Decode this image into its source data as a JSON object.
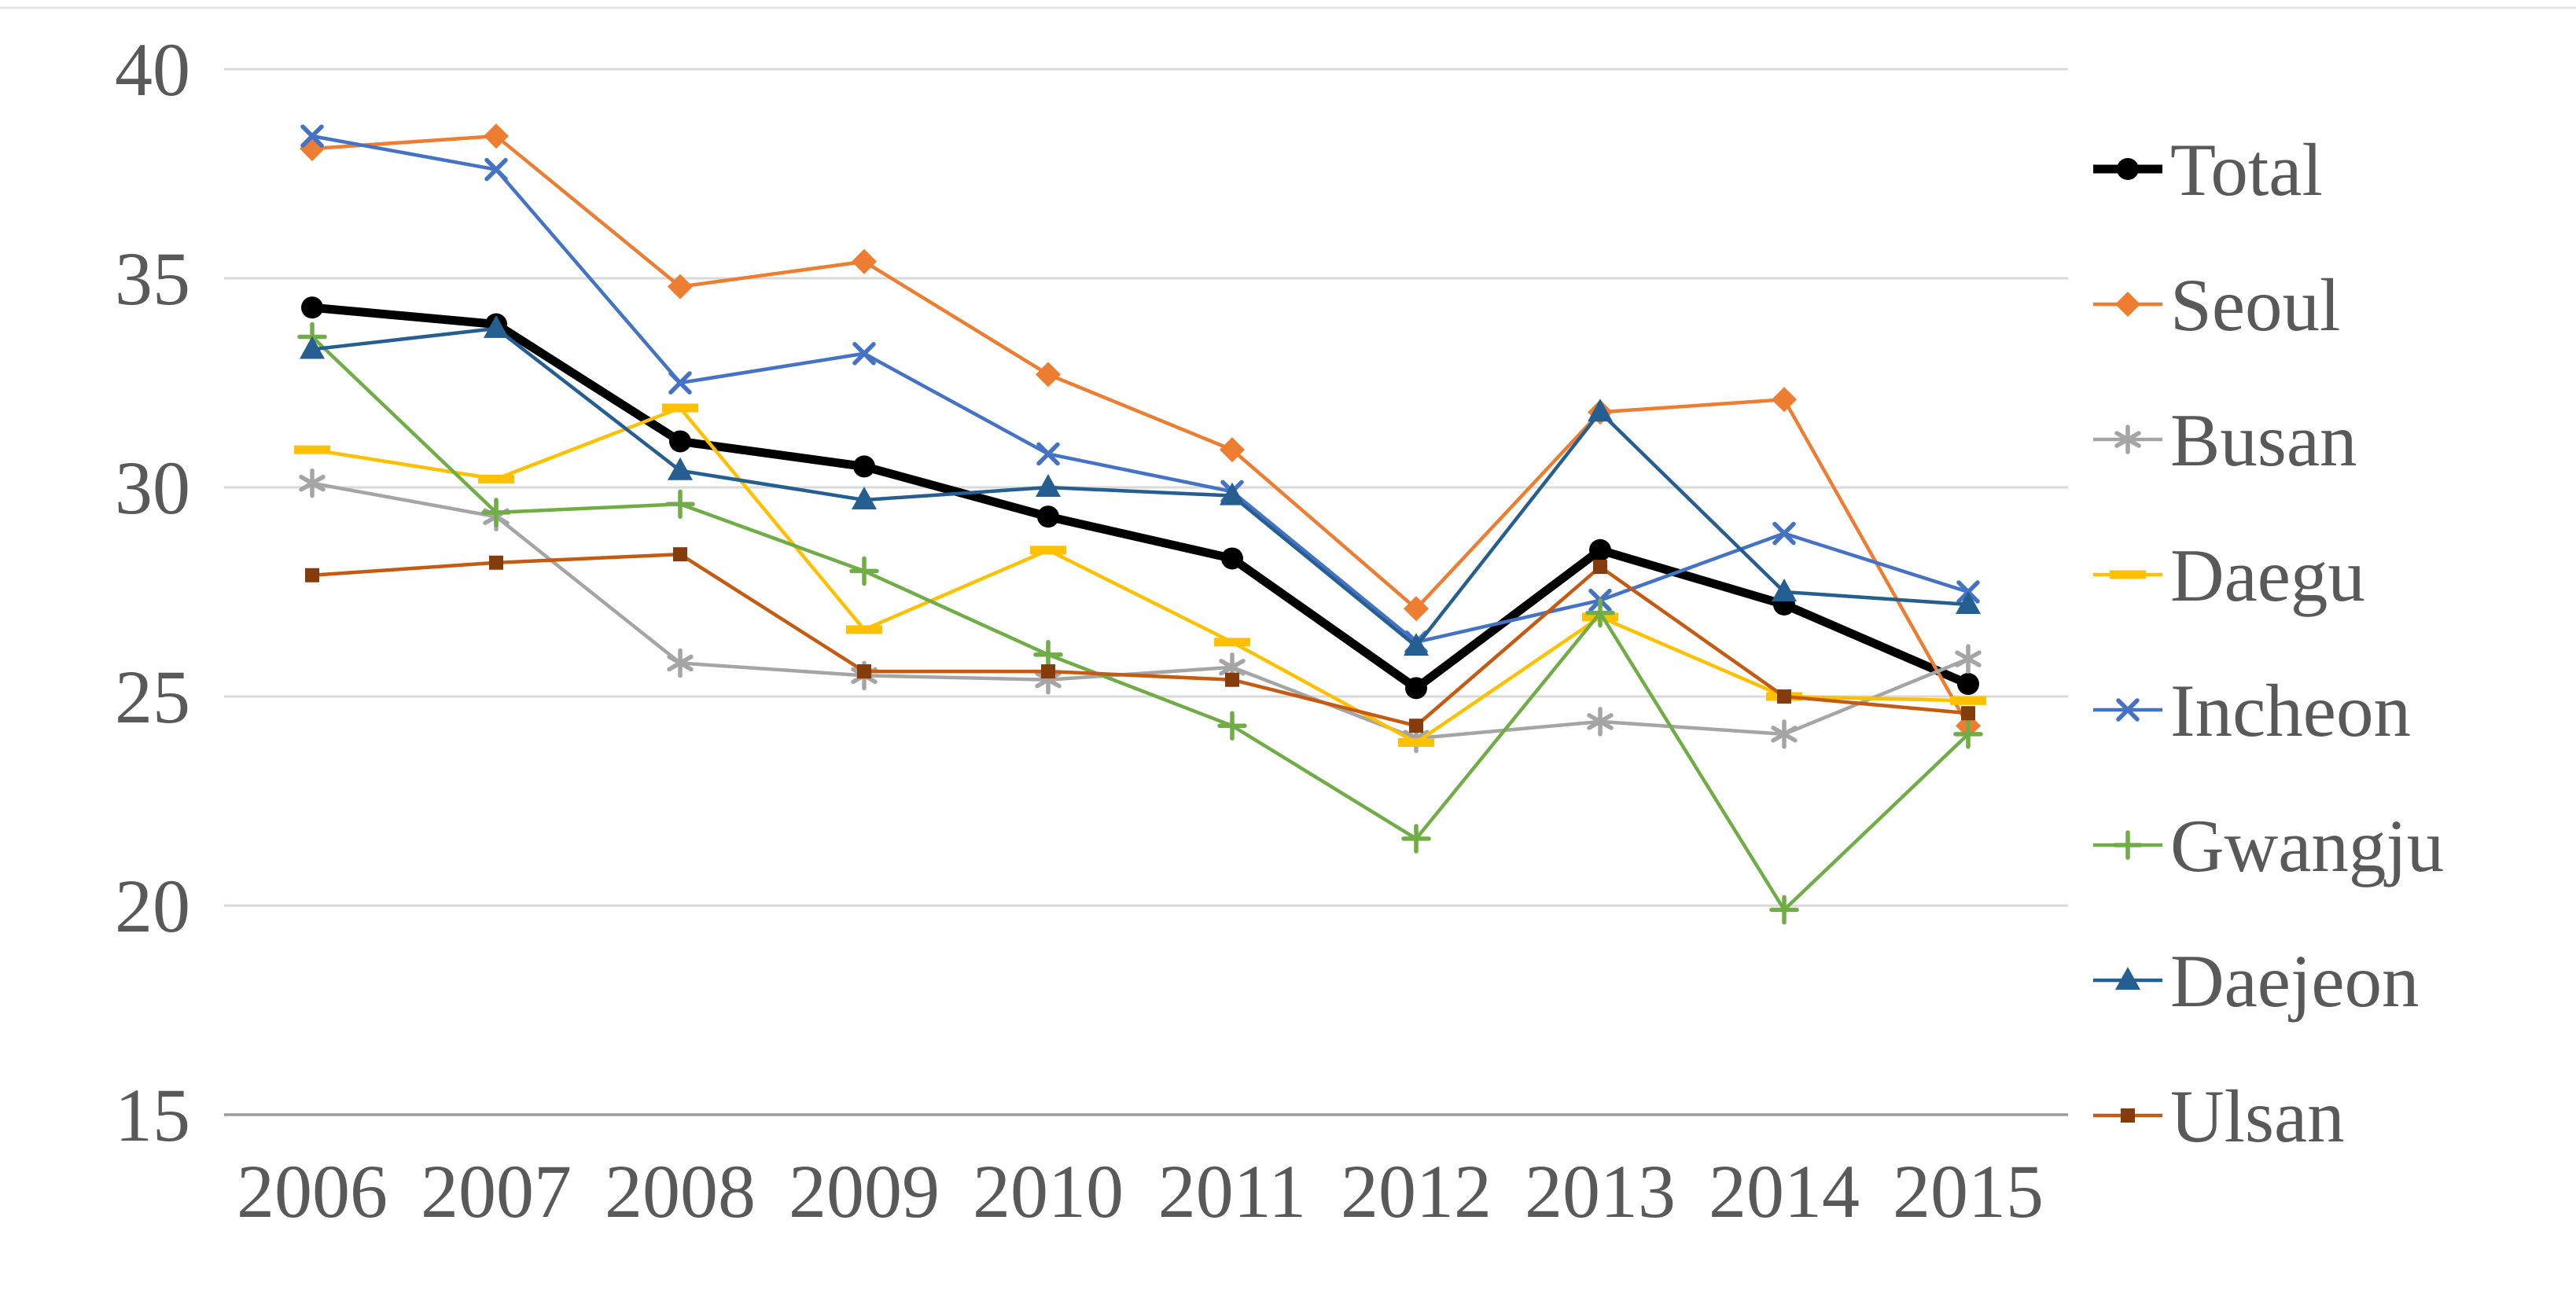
{
  "figure": {
    "background": "#FFFFFF",
    "text_color": "#595959",
    "gridline_color": "#D9D9D9",
    "baseline_color": "#9B9B9B"
  },
  "chart_data": {
    "type": "line",
    "title": "",
    "xlabel": "",
    "ylabel": "",
    "x": [
      "2006",
      "2007",
      "2008",
      "2009",
      "2010",
      "2011",
      "2012",
      "2013",
      "2014",
      "2015"
    ],
    "y_ticks": [
      "40",
      "35",
      "30",
      "25",
      "20",
      "15"
    ],
    "ylim": [
      15,
      41.5
    ],
    "grid": true,
    "legend_position": "right",
    "series": [
      {
        "name": "Total",
        "color": "#000000",
        "marker": "circle",
        "marker_color": "#000000",
        "line_width": 11,
        "values": [
          34.3,
          33.9,
          31.1,
          30.5,
          29.3,
          28.3,
          25.2,
          28.5,
          27.2,
          25.3
        ]
      },
      {
        "name": "Seoul",
        "color": "#ED7D31",
        "marker": "diamond",
        "marker_color": "#ED7D31",
        "line_width": 4.5,
        "values": [
          38.1,
          38.4,
          34.8,
          35.4,
          32.7,
          30.9,
          27.1,
          31.8,
          32.1,
          24.3
        ]
      },
      {
        "name": "Busan",
        "color": "#A5A5A5",
        "marker": "asterisk",
        "marker_color": "#A5A5A5",
        "line_width": 4.5,
        "values": [
          30.1,
          29.3,
          25.8,
          25.5,
          25.4,
          25.7,
          24.0,
          24.4,
          24.1,
          25.9
        ]
      },
      {
        "name": "Daegu",
        "color": "#FFC000",
        "marker": "dash",
        "marker_color": "#FFC000",
        "line_width": 4.5,
        "values": [
          30.9,
          30.2,
          31.9,
          26.6,
          28.5,
          26.3,
          23.9,
          26.9,
          25.0,
          24.9
        ]
      },
      {
        "name": "Incheon",
        "color": "#4472C4",
        "marker": "x",
        "marker_color": "#4472C4",
        "line_width": 4.5,
        "values": [
          38.4,
          37.6,
          32.5,
          33.2,
          30.8,
          29.9,
          26.3,
          27.3,
          28.9,
          27.5
        ]
      },
      {
        "name": "Gwangju",
        "color": "#70AD47",
        "marker": "plus",
        "marker_color": "#70AD47",
        "line_width": 4.5,
        "values": [
          33.6,
          29.4,
          29.6,
          28.0,
          26.0,
          24.3,
          21.6,
          27.0,
          19.9,
          24.1
        ]
      },
      {
        "name": "Daejeon",
        "color": "#255E91",
        "marker": "triangle",
        "marker_color": "#255E91",
        "line_width": 4.5,
        "values": [
          33.3,
          33.8,
          30.4,
          29.7,
          30.0,
          29.8,
          26.2,
          31.8,
          27.5,
          27.2
        ]
      },
      {
        "name": "Ulsan",
        "color": "#C55A11",
        "marker": "square",
        "marker_color": "#843C0C",
        "line_width": 4.5,
        "values": [
          27.9,
          28.2,
          28.4,
          25.6,
          25.6,
          25.4,
          24.3,
          28.1,
          25.0,
          24.6
        ]
      }
    ]
  }
}
